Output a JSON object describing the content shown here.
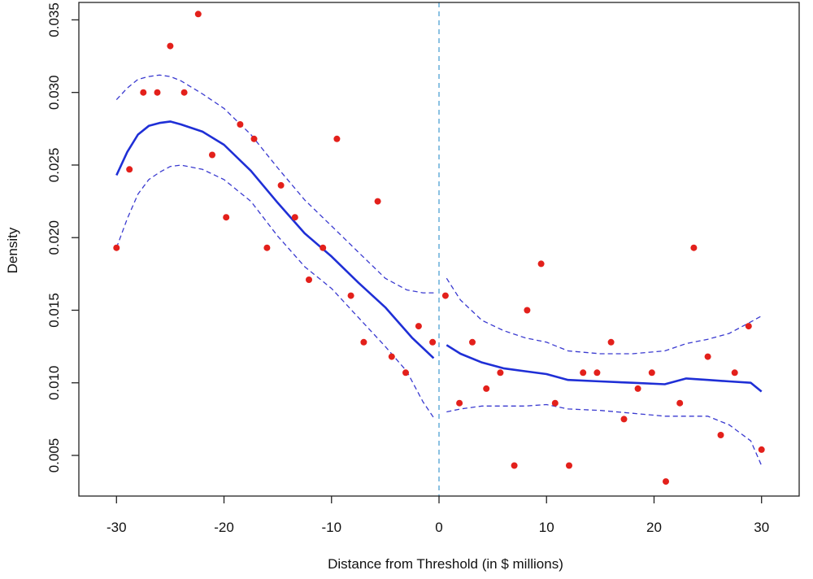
{
  "chart_data": {
    "type": "scatter",
    "title": "",
    "xlabel": "Distance from Threshold (in $ millions)",
    "ylabel": "Density",
    "xlim": [
      -33.5,
      33.5
    ],
    "ylim": [
      0.0022,
      0.0362
    ],
    "x_ticks": [
      -30,
      -20,
      -10,
      0,
      10,
      20,
      30
    ],
    "x_tick_labels": [
      "-30",
      "-20",
      "-10",
      "0",
      "10",
      "20",
      "30"
    ],
    "y_ticks": [
      0.005,
      0.01,
      0.015,
      0.02,
      0.025,
      0.03,
      0.035
    ],
    "y_tick_labels": [
      "0.005",
      "0.010",
      "0.015",
      "0.020",
      "0.025",
      "0.030",
      "0.035"
    ],
    "grid": false,
    "threshold_line": {
      "x": 0,
      "style": "dashed",
      "color": "#5aa7d6"
    },
    "colors": {
      "points": "#e3201b",
      "fit": "#1f2fd6",
      "band": "#3a3ad0",
      "axis": "#222222"
    },
    "points": [
      [
        -30.0,
        0.0193
      ],
      [
        -28.8,
        0.0247
      ],
      [
        -27.5,
        0.03
      ],
      [
        -26.2,
        0.03
      ],
      [
        -25.0,
        0.0332
      ],
      [
        -23.7,
        0.03
      ],
      [
        -22.4,
        0.0354
      ],
      [
        -21.1,
        0.0257
      ],
      [
        -19.8,
        0.0214
      ],
      [
        -18.5,
        0.0278
      ],
      [
        -17.2,
        0.0268
      ],
      [
        -16.0,
        0.0193
      ],
      [
        -14.7,
        0.0236
      ],
      [
        -13.4,
        0.0214
      ],
      [
        -12.1,
        0.0171
      ],
      [
        -10.8,
        0.0193
      ],
      [
        -9.5,
        0.0268
      ],
      [
        -8.2,
        0.016
      ],
      [
        -7.0,
        0.0128
      ],
      [
        -5.7,
        0.0225
      ],
      [
        -4.4,
        0.0118
      ],
      [
        -3.1,
        0.0107
      ],
      [
        -1.9,
        0.0139
      ],
      [
        -0.6,
        0.0128
      ],
      [
        0.6,
        0.016
      ],
      [
        1.9,
        0.0086
      ],
      [
        3.1,
        0.0128
      ],
      [
        4.4,
        0.0096
      ],
      [
        5.7,
        0.0107
      ],
      [
        7.0,
        0.0043
      ],
      [
        8.2,
        0.015
      ],
      [
        9.5,
        0.0182
      ],
      [
        10.8,
        0.0086
      ],
      [
        12.1,
        0.0043
      ],
      [
        13.4,
        0.0107
      ],
      [
        14.7,
        0.0107
      ],
      [
        16.0,
        0.0128
      ],
      [
        17.2,
        0.0075
      ],
      [
        18.5,
        0.0096
      ],
      [
        19.8,
        0.0107
      ],
      [
        21.1,
        0.0032
      ],
      [
        22.4,
        0.0086
      ],
      [
        23.7,
        0.0193
      ],
      [
        25.0,
        0.0118
      ],
      [
        26.2,
        0.0064
      ],
      [
        27.5,
        0.0107
      ],
      [
        28.8,
        0.0139
      ],
      [
        30.0,
        0.0054
      ]
    ],
    "fit_left": [
      [
        -30,
        0.0243
      ],
      [
        -29,
        0.0259
      ],
      [
        -28,
        0.0271
      ],
      [
        -27,
        0.0277
      ],
      [
        -26,
        0.0279
      ],
      [
        -25,
        0.028
      ],
      [
        -24,
        0.0278
      ],
      [
        -22,
        0.0273
      ],
      [
        -20,
        0.0264
      ],
      [
        -17.5,
        0.0246
      ],
      [
        -15,
        0.0224
      ],
      [
        -12.5,
        0.0203
      ],
      [
        -10,
        0.0187
      ],
      [
        -7.5,
        0.0169
      ],
      [
        -5,
        0.0152
      ],
      [
        -2.5,
        0.0131
      ],
      [
        -0.5,
        0.0117
      ]
    ],
    "upper_left": [
      [
        -30,
        0.0295
      ],
      [
        -29,
        0.0303
      ],
      [
        -28,
        0.0309
      ],
      [
        -27,
        0.0311
      ],
      [
        -26,
        0.0312
      ],
      [
        -25,
        0.0311
      ],
      [
        -24,
        0.0308
      ],
      [
        -22,
        0.0299
      ],
      [
        -20,
        0.0289
      ],
      [
        -17.5,
        0.0271
      ],
      [
        -15,
        0.0248
      ],
      [
        -12.5,
        0.0226
      ],
      [
        -10,
        0.0208
      ],
      [
        -7.5,
        0.019
      ],
      [
        -5,
        0.0172
      ],
      [
        -3,
        0.0164
      ],
      [
        -1.5,
        0.0162
      ],
      [
        -0.5,
        0.0162
      ]
    ],
    "lower_left": [
      [
        -30,
        0.0193
      ],
      [
        -29,
        0.0213
      ],
      [
        -28,
        0.023
      ],
      [
        -27,
        0.024
      ],
      [
        -26,
        0.0245
      ],
      [
        -25,
        0.0249
      ],
      [
        -24,
        0.025
      ],
      [
        -22,
        0.0247
      ],
      [
        -20,
        0.024
      ],
      [
        -17.5,
        0.0225
      ],
      [
        -15,
        0.0201
      ],
      [
        -12.5,
        0.018
      ],
      [
        -10,
        0.0165
      ],
      [
        -7.5,
        0.0145
      ],
      [
        -5,
        0.0125
      ],
      [
        -3,
        0.0108
      ],
      [
        -1.5,
        0.0087
      ],
      [
        -0.5,
        0.0076
      ]
    ],
    "fit_right": [
      [
        0.7,
        0.0126
      ],
      [
        2,
        0.012
      ],
      [
        4,
        0.0114
      ],
      [
        6,
        0.011
      ],
      [
        8,
        0.0108
      ],
      [
        10,
        0.0106
      ],
      [
        12,
        0.0102
      ],
      [
        15,
        0.0101
      ],
      [
        18,
        0.01
      ],
      [
        21,
        0.0099
      ],
      [
        23,
        0.0103
      ],
      [
        25,
        0.0102
      ],
      [
        27,
        0.0101
      ],
      [
        29,
        0.01
      ],
      [
        30,
        0.0094
      ]
    ],
    "upper_right": [
      [
        0.7,
        0.0172
      ],
      [
        2,
        0.0157
      ],
      [
        4,
        0.0143
      ],
      [
        6,
        0.0136
      ],
      [
        8,
        0.0131
      ],
      [
        10,
        0.0128
      ],
      [
        12,
        0.0122
      ],
      [
        15,
        0.012
      ],
      [
        18,
        0.012
      ],
      [
        21,
        0.0122
      ],
      [
        23,
        0.0127
      ],
      [
        25,
        0.013
      ],
      [
        27,
        0.0134
      ],
      [
        29,
        0.0142
      ],
      [
        30,
        0.0146
      ]
    ],
    "lower_right": [
      [
        0.7,
        0.008
      ],
      [
        2,
        0.0082
      ],
      [
        4,
        0.0084
      ],
      [
        6,
        0.0084
      ],
      [
        8,
        0.0084
      ],
      [
        10,
        0.0085
      ],
      [
        12,
        0.0082
      ],
      [
        15,
        0.0081
      ],
      [
        18,
        0.0079
      ],
      [
        21,
        0.0077
      ],
      [
        23,
        0.0077
      ],
      [
        25,
        0.0077
      ],
      [
        27,
        0.0071
      ],
      [
        29,
        0.006
      ],
      [
        30,
        0.0043
      ]
    ]
  }
}
